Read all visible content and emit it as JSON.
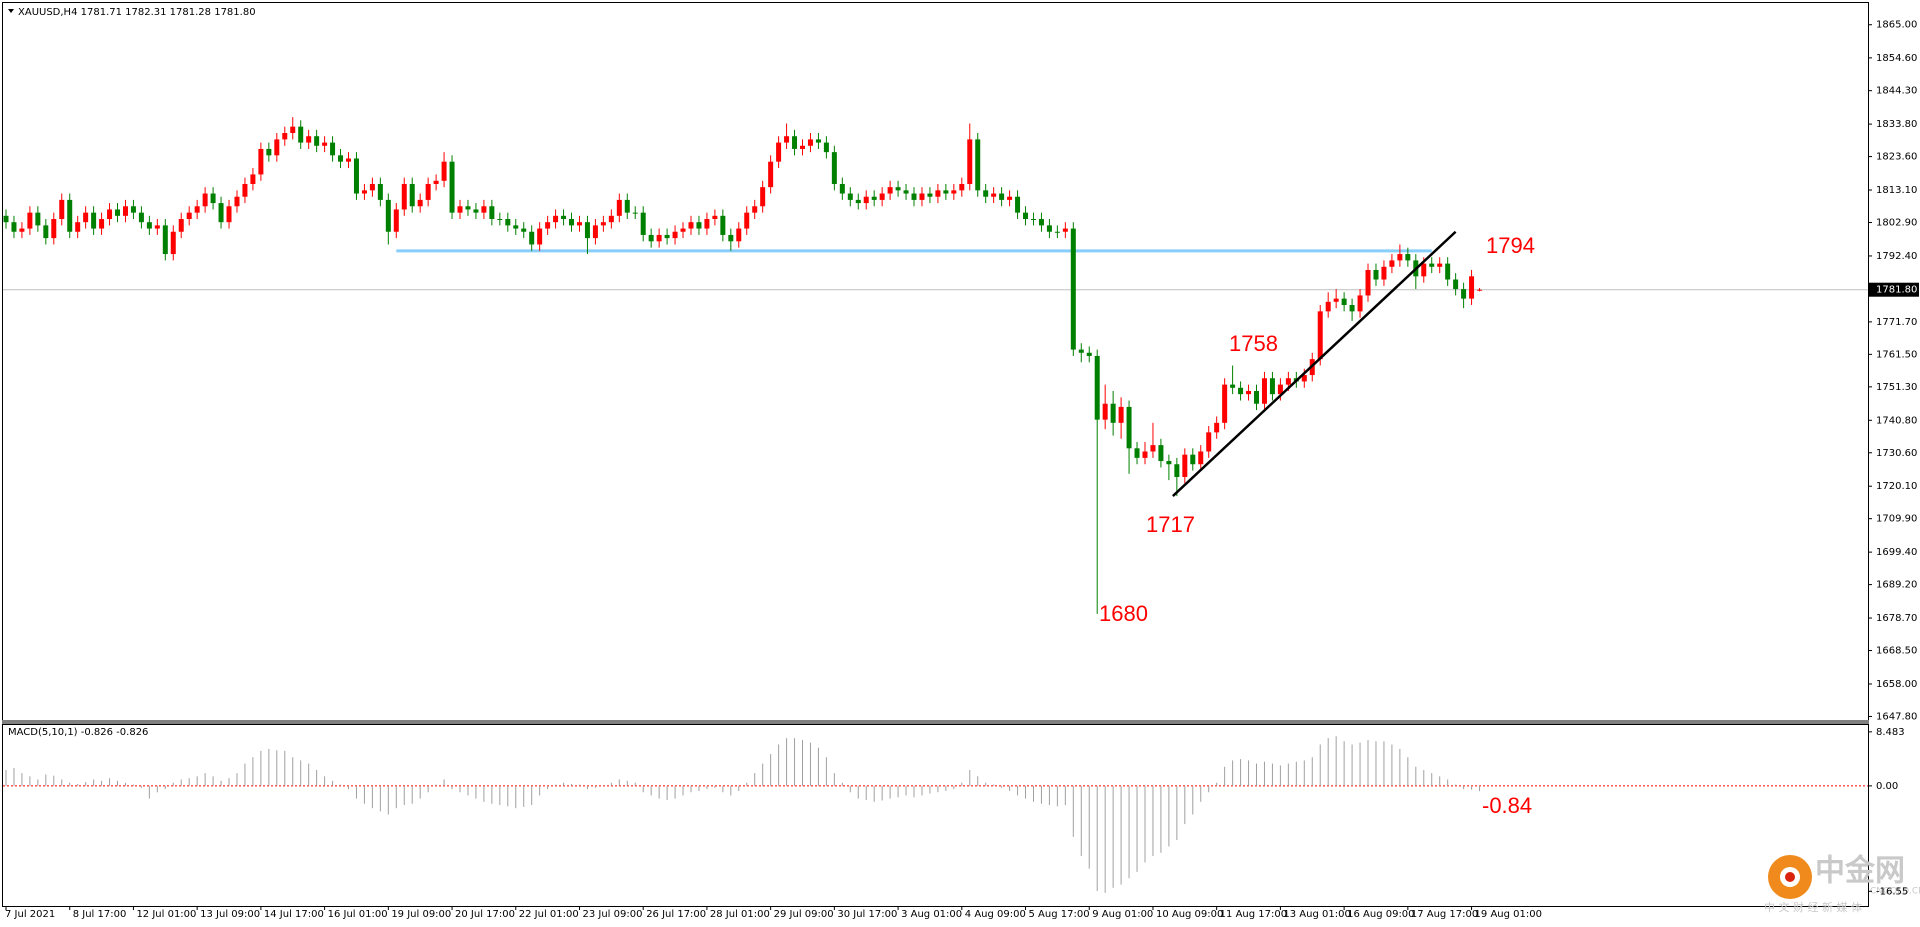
{
  "chart_data": {
    "type": "candlestick",
    "title": "XAUUSD,H4  1781.71 1782.31 1781.28 1781.80",
    "up_color": "#ff0000",
    "down_color": "#008000",
    "ylim": [
      1647,
      1871.2
    ],
    "yticks": [
      {
        "value": 1865,
        "label": "1865.00"
      },
      {
        "value": 1854.6,
        "label": "1854.60"
      },
      {
        "value": 1844.3,
        "label": "1844.30"
      },
      {
        "value": 1833.8,
        "label": "1833.80"
      },
      {
        "value": 1823.6,
        "label": "1823.60"
      },
      {
        "value": 1813.1,
        "label": "1813.10"
      },
      {
        "value": 1802.9,
        "label": "1802.90"
      },
      {
        "value": 1792.4,
        "label": "1792.40"
      },
      {
        "value": 1771.7,
        "label": "1771.70"
      },
      {
        "value": 1761.5,
        "label": "1761.50"
      },
      {
        "value": 1751.3,
        "label": "1751.30"
      },
      {
        "value": 1740.8,
        "label": "1740.80"
      },
      {
        "value": 1730.6,
        "label": "1730.60"
      },
      {
        "value": 1720.1,
        "label": "1720.10"
      },
      {
        "value": 1709.9,
        "label": "1709.90"
      },
      {
        "value": 1699.4,
        "label": "1699.40"
      },
      {
        "value": 1689.2,
        "label": "1689.20"
      },
      {
        "value": 1678.7,
        "label": "1678.70"
      },
      {
        "value": 1668.5,
        "label": "1668.50"
      },
      {
        "value": 1658,
        "label": "1658.00"
      },
      {
        "value": 1647.8,
        "label": "1647.80"
      }
    ],
    "current_price": {
      "value": 1781.8,
      "label": "1781.80"
    },
    "level": {
      "value": 1794,
      "color": "#87cefa"
    },
    "trendline": {
      "from": 1717,
      "to": 1800,
      "color": "#000000"
    },
    "annotations": [
      1794,
      1758,
      1717,
      1680,
      -0.84
    ],
    "categories": [
      "7 Jul 2021",
      null,
      null,
      null,
      null,
      null,
      null,
      null,
      "8 Jul 17:00",
      null,
      null,
      null,
      null,
      null,
      null,
      null,
      "12 Jul 01:00",
      null,
      null,
      null,
      null,
      null,
      null,
      null,
      "13 Jul 09:00",
      null,
      null,
      null,
      null,
      null,
      null,
      null,
      "14 Jul 17:00",
      null,
      null,
      null,
      null,
      null,
      null,
      null,
      "16 Jul 01:00",
      null,
      null,
      null,
      null,
      null,
      null,
      null,
      "19 Jul 09:00",
      null,
      null,
      null,
      null,
      null,
      null,
      null,
      "20 Jul 17:00",
      null,
      null,
      null,
      null,
      null,
      null,
      null,
      "22 Jul 01:00",
      null,
      null,
      null,
      null,
      null,
      null,
      null,
      "23 Jul 09:00",
      null,
      null,
      null,
      null,
      null,
      null,
      null,
      "26 Jul 17:00",
      null,
      null,
      null,
      null,
      null,
      null,
      null,
      "28 Jul 01:00",
      null,
      null,
      null,
      null,
      null,
      null,
      null,
      "29 Jul 09:00",
      null,
      null,
      null,
      null,
      null,
      null,
      null,
      "30 Jul 17:00",
      null,
      null,
      null,
      null,
      null,
      null,
      null,
      "3 Aug 01:00",
      null,
      null,
      null,
      null,
      null,
      null,
      null,
      "4 Aug 09:00",
      null,
      null,
      null,
      null,
      null,
      null,
      null,
      "5 Aug 17:00",
      null,
      null,
      null,
      null,
      null,
      null,
      null,
      "9 Aug 01:00",
      null,
      null,
      null,
      null,
      null,
      null,
      null,
      "10 Aug 09:00",
      null,
      null,
      null,
      null,
      null,
      null,
      null,
      "11 Aug 17:00",
      null,
      null,
      null,
      null,
      null,
      null,
      null,
      "13 Aug 01:00",
      null,
      null,
      null,
      null,
      null,
      null,
      null,
      "16 Aug 09:00",
      null,
      null,
      null,
      null,
      null,
      null,
      null,
      "17 Aug 17:00",
      null,
      null,
      null,
      null,
      null,
      null,
      null,
      "19 Aug 01:00",
      null
    ],
    "open": [
      1805,
      1803,
      1800,
      1801,
      1806,
      1802,
      1798,
      1804,
      1810,
      1800,
      1803,
      1806,
      1801,
      1804,
      1807,
      1805,
      1808,
      1806,
      1803,
      1801,
      1802,
      1793,
      1800,
      1804,
      1806,
      1808,
      1812,
      1809,
      1803,
      1808,
      1811,
      1815,
      1818,
      1826,
      1824,
      1829,
      1831,
      1833,
      1828,
      1830,
      1827,
      1828,
      1824,
      1822,
      1823,
      1812,
      1813,
      1815,
      1810,
      1800,
      1807,
      1815,
      1808,
      1810,
      1815,
      1816,
      1822,
      1806,
      1808,
      1807,
      1806,
      1808,
      1804,
      1804,
      1802,
      1801,
      1800,
      1796,
      1801,
      1803,
      1805,
      1804,
      1802,
      1803,
      1798,
      1802,
      1803,
      1805,
      1810,
      1806,
      1806,
      1799,
      1797,
      1799,
      1798,
      1800,
      1801,
      1803,
      1801,
      1804,
      1805,
      1799,
      1797,
      1801,
      1806,
      1808,
      1814,
      1822,
      1828,
      1830,
      1826,
      1827,
      1829,
      1828,
      1825,
      1815,
      1812,
      1810,
      1809,
      1811,
      1810,
      1812,
      1814,
      1813,
      1812,
      1810,
      1812,
      1811,
      1813,
      1812,
      1813,
      1815,
      1829,
      1813,
      1811,
      1812,
      1810,
      1811,
      1806,
      1804,
      1804,
      1802,
      1800,
      1800,
      1801,
      1763,
      1762,
      1761,
      1741,
      1746,
      1740,
      1745,
      1732,
      1729,
      1731,
      1733,
      1728,
      1727,
      1723,
      1730,
      1727,
      1731,
      1737,
      1740,
      1752,
      1751,
      1749,
      1750,
      1746,
      1754,
      1749,
      1752,
      1754,
      1753,
      1755,
      1760,
      1775,
      1778,
      1779,
      1777,
      1775,
      1780,
      1788,
      1785,
      1789,
      1791,
      1793,
      1791,
      1786,
      1790,
      1789,
      1790,
      1785,
      1782,
      1779,
      1781.71
    ],
    "high": [
      1807,
      1805,
      1803,
      1808,
      1808,
      1804,
      1806,
      1812,
      1812,
      1805,
      1808,
      1808,
      1806,
      1809,
      1809,
      1810,
      1810,
      1808,
      1805,
      1804,
      1804,
      1802,
      1806,
      1808,
      1810,
      1814,
      1814,
      1811,
      1810,
      1813,
      1817,
      1820,
      1828,
      1828,
      1831,
      1833,
      1836,
      1835,
      1832,
      1832,
      1830,
      1830,
      1826,
      1825,
      1825,
      1815,
      1817,
      1817,
      1812,
      1809,
      1817,
      1817,
      1812,
      1817,
      1818,
      1825,
      1824,
      1810,
      1810,
      1809,
      1810,
      1810,
      1806,
      1806,
      1804,
      1803,
      1802,
      1803,
      1805,
      1807,
      1807,
      1806,
      1805,
      1805,
      1804,
      1805,
      1807,
      1812,
      1812,
      1808,
      1808,
      1801,
      1801,
      1801,
      1802,
      1803,
      1805,
      1805,
      1806,
      1807,
      1807,
      1801,
      1803,
      1808,
      1810,
      1816,
      1824,
      1830,
      1834,
      1832,
      1829,
      1831,
      1831,
      1830,
      1827,
      1817,
      1814,
      1812,
      1813,
      1813,
      1814,
      1816,
      1816,
      1815,
      1814,
      1814,
      1814,
      1815,
      1815,
      1815,
      1817,
      1834,
      1831,
      1815,
      1814,
      1814,
      1813,
      1813,
      1808,
      1806,
      1806,
      1804,
      1802,
      1803,
      1803,
      1765,
      1764,
      1763,
      1752,
      1750,
      1748,
      1747,
      1734,
      1734,
      1740,
      1735,
      1730,
      1729,
      1732,
      1732,
      1733,
      1739,
      1742,
      1754,
      1758,
      1753,
      1752,
      1752,
      1756,
      1756,
      1754,
      1756,
      1756,
      1757,
      1762,
      1777,
      1781,
      1782,
      1781,
      1779,
      1782,
      1790,
      1790,
      1791,
      1793,
      1796,
      1795,
      1793,
      1792,
      1792,
      1792,
      1792,
      1787,
      1784,
      1788,
      1782.31
    ],
    "low": [
      1801,
      1798,
      1798,
      1799,
      1800,
      1796,
      1796,
      1802,
      1798,
      1798,
      1801,
      1799,
      1799,
      1802,
      1803,
      1803,
      1804,
      1801,
      1799,
      1799,
      1791,
      1791,
      1798,
      1802,
      1804,
      1806,
      1807,
      1801,
      1801,
      1806,
      1809,
      1813,
      1816,
      1822,
      1822,
      1827,
      1829,
      1826,
      1826,
      1825,
      1825,
      1822,
      1820,
      1820,
      1810,
      1810,
      1811,
      1808,
      1796,
      1798,
      1805,
      1806,
      1806,
      1808,
      1813,
      1814,
      1804,
      1804,
      1805,
      1804,
      1804,
      1802,
      1802,
      1800,
      1799,
      1798,
      1794,
      1794,
      1799,
      1801,
      1802,
      1800,
      1800,
      1793,
      1796,
      1800,
      1801,
      1803,
      1804,
      1804,
      1797,
      1795,
      1795,
      1796,
      1796,
      1798,
      1799,
      1799,
      1799,
      1802,
      1797,
      1794,
      1795,
      1799,
      1804,
      1806,
      1812,
      1820,
      1826,
      1824,
      1824,
      1825,
      1826,
      1823,
      1813,
      1810,
      1808,
      1807,
      1807,
      1808,
      1808,
      1810,
      1811,
      1810,
      1808,
      1808,
      1809,
      1809,
      1810,
      1810,
      1811,
      1813,
      1811,
      1809,
      1809,
      1808,
      1808,
      1804,
      1802,
      1802,
      1800,
      1798,
      1798,
      1798,
      1761,
      1759,
      1759,
      1680,
      1738,
      1736,
      1735,
      1724,
      1727,
      1727,
      1729,
      1726,
      1722,
      1717,
      1721,
      1725,
      1725,
      1729,
      1735,
      1738,
      1749,
      1747,
      1747,
      1744,
      1744,
      1747,
      1747,
      1750,
      1751,
      1751,
      1753,
      1758,
      1773,
      1776,
      1775,
      1772,
      1773,
      1778,
      1783,
      1783,
      1787,
      1789,
      1789,
      1782,
      1784,
      1787,
      1787,
      1783,
      1780,
      1776,
      1777,
      1781.28
    ],
    "close": [
      1803,
      1800,
      1801,
      1806,
      1802,
      1798,
      1804,
      1810,
      1800,
      1803,
      1806,
      1801,
      1804,
      1807,
      1805,
      1808,
      1806,
      1803,
      1801,
      1802,
      1793,
      1800,
      1804,
      1806,
      1808,
      1812,
      1809,
      1803,
      1808,
      1811,
      1815,
      1818,
      1826,
      1824,
      1829,
      1831,
      1833,
      1828,
      1830,
      1827,
      1828,
      1824,
      1822,
      1823,
      1812,
      1813,
      1815,
      1810,
      1800,
      1807,
      1815,
      1808,
      1810,
      1815,
      1816,
      1822,
      1806,
      1808,
      1807,
      1806,
      1808,
      1804,
      1804,
      1802,
      1801,
      1800,
      1796,
      1801,
      1803,
      1805,
      1804,
      1802,
      1803,
      1798,
      1802,
      1803,
      1805,
      1810,
      1806,
      1806,
      1799,
      1797,
      1799,
      1798,
      1800,
      1801,
      1803,
      1801,
      1804,
      1805,
      1799,
      1797,
      1801,
      1806,
      1808,
      1814,
      1822,
      1828,
      1830,
      1826,
      1827,
      1829,
      1828,
      1825,
      1815,
      1812,
      1810,
      1809,
      1811,
      1810,
      1812,
      1814,
      1813,
      1812,
      1810,
      1812,
      1811,
      1813,
      1812,
      1813,
      1815,
      1829,
      1813,
      1811,
      1812,
      1810,
      1811,
      1806,
      1804,
      1804,
      1802,
      1800,
      1800,
      1801,
      1763,
      1762,
      1761,
      1741,
      1746,
      1740,
      1745,
      1732,
      1729,
      1731,
      1733,
      1728,
      1727,
      1723,
      1730,
      1727,
      1731,
      1737,
      1740,
      1752,
      1751,
      1749,
      1750,
      1746,
      1754,
      1749,
      1752,
      1754,
      1753,
      1755,
      1760,
      1775,
      1778,
      1779,
      1777,
      1775,
      1780,
      1788,
      1785,
      1789,
      1791,
      1793,
      1791,
      1786,
      1790,
      1789,
      1790,
      1785,
      1782,
      1779,
      1786,
      1781.8
    ],
    "macd": {
      "title": "MACD(5,10,1) -0.826 -0.826",
      "color": "#a0a0a0",
      "zero_color": "#ff0000",
      "ylim": [
        -18.7,
        9.4
      ],
      "yticks": [
        8.483,
        {
          "value": 0,
          "label": "0.00"
        },
        -16.55
      ],
      "values": [
        2.5,
        2.8,
        2.0,
        1.5,
        1.0,
        1.8,
        1.6,
        1.0,
        0.5,
        0.3,
        0.6,
        1.0,
        0.8,
        1.2,
        0.8,
        0.5,
        0.2,
        -0.3,
        -2.0,
        -1.0,
        -0.5,
        0.5,
        1.0,
        1.2,
        1.5,
        2.0,
        1.5,
        0.8,
        1.2,
        2.0,
        3.5,
        4.5,
        5.5,
        5.8,
        5.6,
        5.5,
        4.5,
        4.0,
        3.5,
        2.5,
        1.5,
        0.8,
        0.2,
        -0.5,
        -2.0,
        -2.8,
        -3.5,
        -4.0,
        -4.5,
        -3.5,
        -3.0,
        -2.8,
        -2.0,
        -1.0,
        0.2,
        1.0,
        -0.5,
        -1.0,
        -1.5,
        -2.0,
        -2.5,
        -2.8,
        -3.0,
        -3.2,
        -3.5,
        -3.3,
        -3.0,
        -1.5,
        -0.5,
        0.2,
        0.5,
        0.3,
        0.2,
        -0.5,
        -0.3,
        0.1,
        0.5,
        1.0,
        0.8,
        0.5,
        -1.0,
        -1.5,
        -2.0,
        -2.2,
        -2.0,
        -1.5,
        -1.0,
        -0.8,
        -0.5,
        -0.3,
        -1.0,
        -1.5,
        -0.8,
        0.5,
        2.0,
        3.5,
        5.0,
        6.5,
        7.5,
        7.5,
        7.2,
        6.8,
        6.0,
        4.5,
        2.0,
        0.5,
        -1.0,
        -2.0,
        -2.2,
        -2.5,
        -2.3,
        -2.0,
        -1.8,
        -1.5,
        -1.8,
        -1.5,
        -1.2,
        -1.0,
        -0.8,
        -0.5,
        0.5,
        2.5,
        1.5,
        0.5,
        0.2,
        -0.3,
        -0.8,
        -1.5,
        -2.0,
        -2.5,
        -2.8,
        -3.0,
        -3.2,
        -3.0,
        -8.0,
        -11.0,
        -13.0,
        -16.5,
        -16.8,
        -16.0,
        -15.5,
        -14.5,
        -13.5,
        -12.0,
        -11.0,
        -10.5,
        -9.5,
        -8.5,
        -6.0,
        -4.5,
        -2.5,
        -1.0,
        0.5,
        3.0,
        4.0,
        4.2,
        4.0,
        3.5,
        3.8,
        3.5,
        3.2,
        3.5,
        3.8,
        4.0,
        4.5,
        6.5,
        7.5,
        7.8,
        7.0,
        6.5,
        6.8,
        7.2,
        7.0,
        7.0,
        6.5,
        5.8,
        4.5,
        3.0,
        2.5,
        2.0,
        1.5,
        1.0,
        0.2,
        -0.5,
        -0.6,
        -0.826
      ]
    },
    "watermark": {
      "title": "中金网",
      "site": "CNGOLD.CN",
      "tagline": "中 文 财 经 新 媒 体"
    }
  }
}
